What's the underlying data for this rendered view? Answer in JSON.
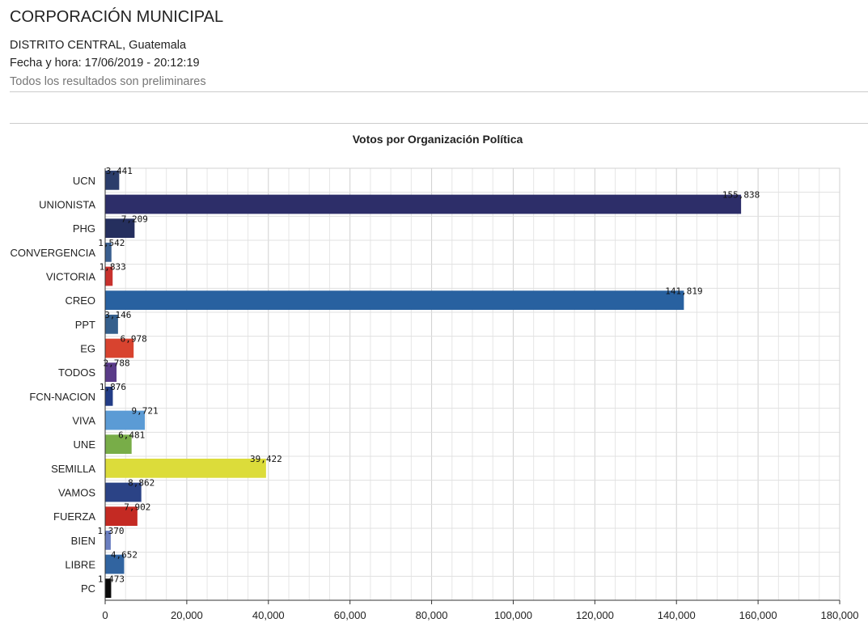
{
  "header": {
    "title": "CORPORACIÓN MUNICIPAL",
    "location": "DISTRITO CENTRAL, Guatemala",
    "datetime": "Fecha y hora: 17/06/2019 - 20:12:19",
    "note": "Todos los resultados son preliminares"
  },
  "chart_data": {
    "type": "bar",
    "orientation": "horizontal",
    "title": "Votos por Organización Política",
    "xlabel": "",
    "ylabel": "",
    "xlim": [
      0,
      180000
    ],
    "ticks": [
      0,
      20000,
      40000,
      60000,
      80000,
      100000,
      120000,
      140000,
      160000,
      180000
    ],
    "tick_labels": [
      "0",
      "20,000",
      "40,000",
      "60,000",
      "80,000",
      "100,000",
      "120,000",
      "140,000",
      "160,000",
      "180,000"
    ],
    "grid": true,
    "categories": [
      "UCN",
      "UNIONISTA",
      "PHG",
      "CONVERGENCIA",
      "VICTORIA",
      "CREO",
      "PPT",
      "EG",
      "TODOS",
      "FCN-NACION",
      "VIVA",
      "UNE",
      "SEMILLA",
      "VAMOS",
      "FUERZA",
      "BIEN",
      "LIBRE",
      "PC"
    ],
    "values": [
      3441,
      155838,
      7209,
      1542,
      1833,
      141819,
      3146,
      6978,
      2788,
      1876,
      9721,
      6481,
      39422,
      8862,
      7902,
      1370,
      4652,
      1473
    ],
    "value_labels": [
      "3,441",
      "155,838",
      "7,209",
      "1,542",
      "1,833",
      "141,819",
      "3,146",
      "6,978",
      "2,788",
      "1,876",
      "9,721",
      "6,481",
      "39,422",
      "8,862",
      "7,902",
      "1,370",
      "4,652",
      "1,473"
    ],
    "colors": [
      "#2b3d6b",
      "#2d2e69",
      "#252f5e",
      "#3a5f8f",
      "#c8312d",
      "#2861a0",
      "#345f8c",
      "#d8432f",
      "#5a3b88",
      "#223c86",
      "#5b9bd5",
      "#78ad48",
      "#dcdc3a",
      "#2b4386",
      "#c42a23",
      "#6a7ec0",
      "#3164a0",
      "#0a0a0a"
    ]
  }
}
